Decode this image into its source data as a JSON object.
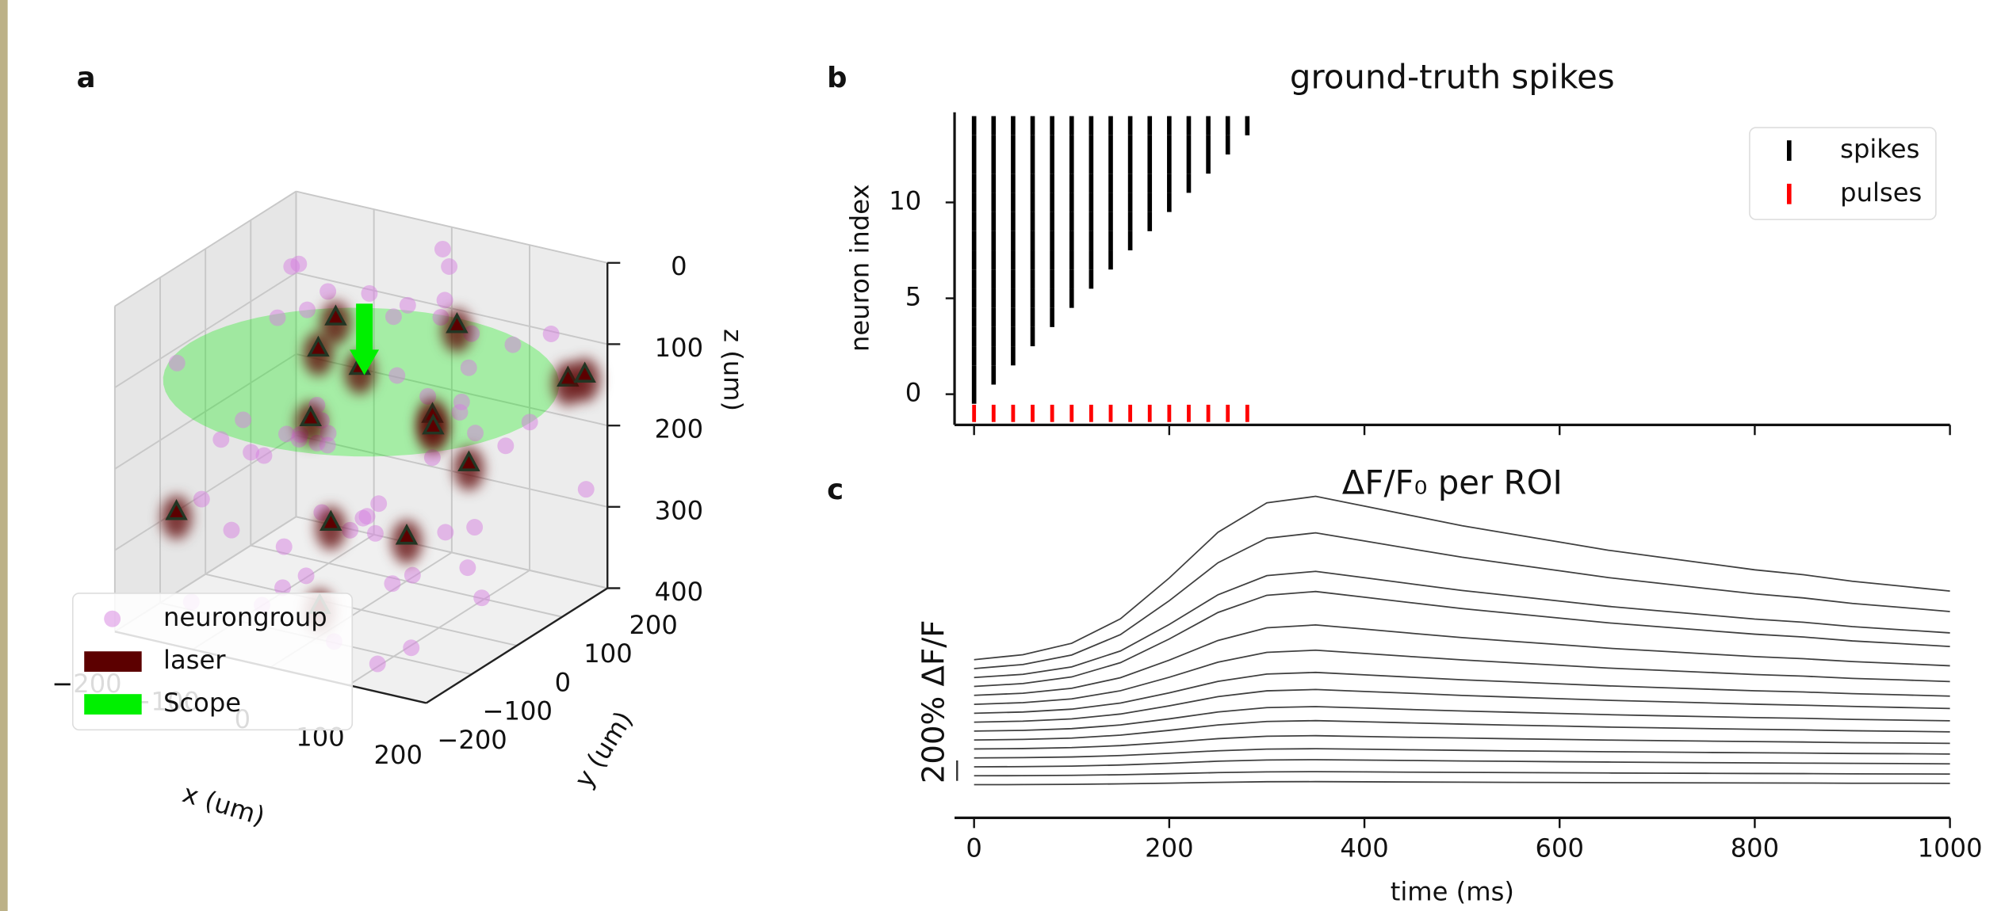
{
  "chart_data": [
    {
      "type": "scatter3d",
      "panel": "a",
      "xlabel": "x (um)",
      "ylabel": "y (um)",
      "zlabel": "z (um)",
      "xlim": [
        -200,
        200
      ],
      "ylim": [
        -200,
        200
      ],
      "zlim": [
        400,
        0
      ],
      "xticks": [
        {
          "value": -200,
          "label": "−200"
        },
        {
          "value": -100,
          "label": "−100"
        },
        0,
        100,
        200
      ],
      "yticks": [
        {
          "value": -200,
          "label": "−200"
        },
        {
          "value": -100,
          "label": "−100"
        },
        0,
        100,
        200
      ],
      "zticks": [
        0,
        100,
        200,
        300,
        400
      ],
      "grid": true,
      "legend": "lower left",
      "series": [
        {
          "name": "neurongroup",
          "color": "#d67fe0",
          "x": [
            -150,
            -120,
            -80,
            -40,
            0,
            40,
            80,
            120,
            160,
            -170,
            -130,
            -90,
            -50,
            -10,
            30,
            70,
            110,
            150,
            190,
            -160,
            -110,
            -60,
            -20,
            20,
            60,
            100,
            140,
            180,
            -140,
            -100,
            -30,
            10,
            50,
            90,
            130,
            170,
            -180,
            -70,
            -10,
            60,
            120,
            -190,
            -150,
            -90,
            -40,
            25,
            85,
            145,
            -125,
            -55,
            15,
            75,
            135,
            195,
            -165,
            -95,
            -25,
            45,
            105,
            165
          ],
          "y": [
            120,
            -80,
            40,
            -150,
            180,
            -30,
            100,
            -170,
            60,
            -60,
            150,
            -10,
            90,
            -120,
            20,
            -180,
            130,
            -40,
            170,
            -100,
            70,
            -140,
            10,
            160,
            -90,
            50,
            -130,
            110,
            -20,
            190,
            -70,
            140,
            -160,
            30,
            -110,
            80,
            0,
            -50,
            120,
            -190,
            60,
            -80,
            170,
            -30,
            100,
            -140,
            40,
            -170,
            80,
            -120,
            150,
            -60,
            20,
            -100,
            130,
            -10,
            190,
            -150,
            70,
            -40
          ],
          "z": [
            50,
            300,
            180,
            350,
            20,
            250,
            120,
            380,
            60,
            280,
            90,
            200,
            330,
            150,
            40,
            360,
            220,
            110,
            270,
            390,
            80,
            170,
            310,
            30,
            240,
            140,
            370,
            60,
            190,
            100,
            340,
            260,
            130,
            10,
            290,
            160,
            230,
            320,
            70,
            200,
            380,
            110,
            260,
            50,
            350,
            140,
            300,
            20,
            240,
            180,
            90,
            330,
            160,
            270,
            60,
            390,
            210,
            120,
            300,
            10
          ]
        },
        {
          "name": "laser",
          "color": "#5c0000",
          "x": [
            -120,
            -90,
            -60,
            30,
            80,
            110,
            150,
            190,
            200,
            -30,
            60,
            140,
            -150,
            40
          ],
          "y": [
            150,
            60,
            100,
            160,
            20,
            -30,
            -20,
            130,
            150,
            -60,
            -170,
            -140,
            -150,
            -160
          ],
          "z": [
            120,
            120,
            150,
            100,
            150,
            140,
            180,
            120,
            120,
            150,
            220,
            230,
            260,
            330
          ]
        },
        {
          "name": "Scope",
          "color": "#00f000",
          "center": [
            0,
            0,
            120
          ],
          "radius": 220
        }
      ]
    },
    {
      "type": "eventplot",
      "panel": "b",
      "title": "ground-truth spikes",
      "ylabel": "neuron index",
      "xlim": [
        -20,
        1000
      ],
      "ylim": [
        -1.6,
        14.7
      ],
      "xticks": [
        0,
        200,
        400,
        600,
        800,
        1000
      ],
      "yticks": [
        0,
        5,
        10
      ],
      "legend": "upper right",
      "series": [
        {
          "name": "spikes",
          "color": "#000000",
          "positions": [
            [
              0
            ],
            [
              0,
              20
            ],
            [
              0,
              20,
              40
            ],
            [
              0,
              20,
              40,
              60
            ],
            [
              0,
              20,
              40,
              60,
              80
            ],
            [
              0,
              20,
              40,
              60,
              80,
              100
            ],
            [
              0,
              20,
              40,
              60,
              80,
              100,
              120
            ],
            [
              0,
              20,
              40,
              60,
              80,
              100,
              120,
              140
            ],
            [
              0,
              20,
              40,
              60,
              80,
              100,
              120,
              140,
              160
            ],
            [
              0,
              20,
              40,
              60,
              80,
              100,
              120,
              140,
              160,
              180
            ],
            [
              0,
              20,
              40,
              60,
              80,
              100,
              120,
              140,
              160,
              180,
              200
            ],
            [
              0,
              20,
              40,
              60,
              80,
              100,
              120,
              140,
              160,
              180,
              200,
              220
            ],
            [
              0,
              20,
              40,
              60,
              80,
              100,
              120,
              140,
              160,
              180,
              200,
              220,
              240
            ],
            [
              0,
              20,
              40,
              60,
              80,
              100,
              120,
              140,
              160,
              180,
              200,
              220,
              240,
              260
            ],
            [
              0,
              20,
              40,
              60,
              80,
              100,
              120,
              140,
              160,
              180,
              200,
              220,
              240,
              260,
              280
            ]
          ]
        },
        {
          "name": "pulses",
          "color": "#ff0000",
          "offset": -1,
          "positions": [
            0,
            20,
            40,
            60,
            80,
            100,
            120,
            140,
            160,
            180,
            200,
            220,
            240,
            260,
            280
          ]
        }
      ]
    },
    {
      "type": "line",
      "panel": "c",
      "title": "ΔF/F₀ per ROI",
      "xlabel": "time (ms)",
      "xlim": [
        -20,
        1000
      ],
      "xticks": [
        0,
        200,
        400,
        600,
        800,
        1000
      ],
      "scalebar": {
        "value": 200,
        "label": "200% ΔF/F"
      },
      "x": [
        0,
        50,
        100,
        150,
        200,
        250,
        300,
        350,
        400,
        450,
        500,
        550,
        600,
        650,
        700,
        750,
        800,
        850,
        900,
        950,
        1000
      ],
      "series": [
        {
          "color": "#404040",
          "values": [
            0,
            1,
            3,
            8,
            15,
            23,
            29,
            30,
            28,
            26,
            25,
            23,
            22,
            20,
            19,
            18,
            17,
            16,
            14,
            14,
            13
          ]
        },
        {
          "color": "#404040",
          "values": [
            0,
            1,
            4,
            10,
            20,
            31,
            38,
            40,
            38,
            35,
            33,
            31,
            29,
            27,
            25,
            24,
            22,
            21,
            19,
            18,
            17
          ]
        },
        {
          "color": "#404040",
          "values": [
            0,
            2,
            7,
            18,
            35,
            55,
            67,
            70,
            66,
            62,
            57,
            54,
            50,
            47,
            44,
            41,
            39,
            36,
            34,
            32,
            29
          ]
        },
        {
          "color": "#404040",
          "values": [
            0,
            3,
            9,
            23,
            45,
            70,
            86,
            90,
            85,
            79,
            74,
            69,
            65,
            60,
            57,
            53,
            50,
            47,
            43,
            41,
            38
          ]
        },
        {
          "color": "#404040",
          "values": [
            0,
            4,
            13,
            33,
            65,
            101,
            125,
            130,
            122,
            114,
            107,
            100,
            94,
            87,
            82,
            77,
            72,
            68,
            62,
            59,
            55
          ]
        },
        {
          "color": "#404040",
          "values": [
            0,
            6,
            19,
            48,
            95,
            148,
            182,
            190,
            179,
            167,
            156,
            146,
            137,
            127,
            120,
            112,
            105,
            99,
            91,
            86,
            80
          ]
        },
        {
          "color": "#404040",
          "values": [
            0,
            7,
            24,
            60,
            120,
            187,
            230,
            240,
            226,
            211,
            197,
            185,
            173,
            161,
            151,
            142,
            132,
            125,
            115,
            108,
            101
          ]
        },
        {
          "color": "#404040",
          "values": [
            0,
            10,
            32,
            80,
            160,
            250,
            307,
            320,
            301,
            282,
            262,
            246,
            230,
            214,
            202,
            189,
            176,
            166,
            154,
            144,
            134
          ]
        },
        {
          "color": "#404040",
          "values": [
            0,
            12,
            40,
            100,
            200,
            312,
            384,
            400,
            376,
            352,
            328,
            308,
            288,
            268,
            252,
            236,
            220,
            208,
            192,
            180,
            168
          ]
        },
        {
          "color": "#404040",
          "values": [
            0,
            16,
            53,
            133,
            265,
            413,
            509,
            530,
            498,
            466,
            435,
            408,
            382,
            355,
            334,
            313,
            292,
            276,
            254,
            239,
            223
          ]
        },
        {
          "color": "#404040",
          "values": [
            0,
            21,
            69,
            173,
            345,
            538,
            662,
            690,
            649,
            607,
            566,
            531,
            497,
            462,
            435,
            407,
            380,
            359,
            331,
            311,
            290
          ]
        },
        {
          "color": "#404040",
          "values": [
            0,
            28,
            93,
            233,
            465,
            725,
            893,
            930,
            874,
            818,
            763,
            716,
            670,
            623,
            586,
            549,
            512,
            484,
            446,
            419,
            391
          ]
        },
        {
          "color": "#404040",
          "values": [
            0,
            31,
            104,
            260,
            520,
            811,
            998,
            1040,
            978,
            915,
            853,
            801,
            749,
            697,
            655,
            614,
            572,
            541,
            499,
            468,
            437
          ]
        },
        {
          "color": "#404040",
          "values": [
            0,
            40,
            133,
            333,
            665,
            1037,
            1277,
            1330,
            1250,
            1170,
            1091,
            1024,
            958,
            891,
            838,
            785,
            732,
            692,
            638,
            599,
            559
          ]
        },
        {
          "color": "#404040",
          "values": [
            0,
            48,
            160,
            400,
            800,
            1248,
            1536,
            1600,
            1504,
            1408,
            1312,
            1232,
            1152,
            1072,
            1008,
            944,
            880,
            832,
            768,
            720,
            672
          ]
        }
      ]
    }
  ]
}
